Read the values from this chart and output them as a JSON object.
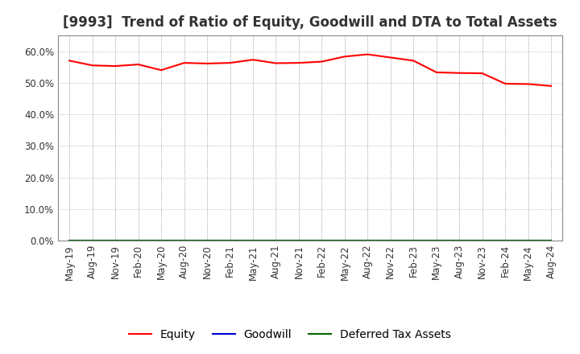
{
  "title": "[9993]  Trend of Ratio of Equity, Goodwill and DTA to Total Assets",
  "title_fontsize": 12,
  "ylim": [
    0.0,
    0.65
  ],
  "yticks": [
    0.0,
    0.1,
    0.2,
    0.3,
    0.4,
    0.5,
    0.6
  ],
  "background_color": "#ffffff",
  "plot_bg_color": "#ffffff",
  "grid_color": "#aaaaaa",
  "x_labels": [
    "May-19",
    "Aug-19",
    "Nov-19",
    "Feb-20",
    "May-20",
    "Aug-20",
    "Nov-20",
    "Feb-21",
    "May-21",
    "Aug-21",
    "Nov-21",
    "Feb-22",
    "May-22",
    "Aug-22",
    "Nov-22",
    "Feb-23",
    "May-23",
    "Aug-23",
    "Nov-23",
    "Feb-24",
    "May-24",
    "Aug-24"
  ],
  "equity": [
    0.57,
    0.555,
    0.553,
    0.558,
    0.54,
    0.563,
    0.561,
    0.563,
    0.573,
    0.562,
    0.563,
    0.567,
    0.583,
    0.59,
    0.58,
    0.57,
    0.533,
    0.531,
    0.53,
    0.497,
    0.496,
    0.49
  ],
  "goodwill": [
    0.0,
    0.0,
    0.0,
    0.0,
    0.0,
    0.0,
    0.0,
    0.0,
    0.0,
    0.0,
    0.0,
    0.0,
    0.0,
    0.0,
    0.0,
    0.0,
    0.0,
    0.0,
    0.0,
    0.0,
    0.0,
    0.0
  ],
  "dta": [
    0.0,
    0.0,
    0.0,
    0.0,
    0.0,
    0.0,
    0.0,
    0.0,
    0.0,
    0.0,
    0.0,
    0.0,
    0.0,
    0.0,
    0.0,
    0.0,
    0.0,
    0.0,
    0.0,
    0.0,
    0.0,
    0.0
  ],
  "equity_color": "#ff0000",
  "goodwill_color": "#0000cc",
  "dta_color": "#006600",
  "line_width": 1.5,
  "legend_labels": [
    "Equity",
    "Goodwill",
    "Deferred Tax Assets"
  ],
  "legend_fontsize": 10,
  "tick_fontsize": 8.5,
  "title_color": "#333333"
}
